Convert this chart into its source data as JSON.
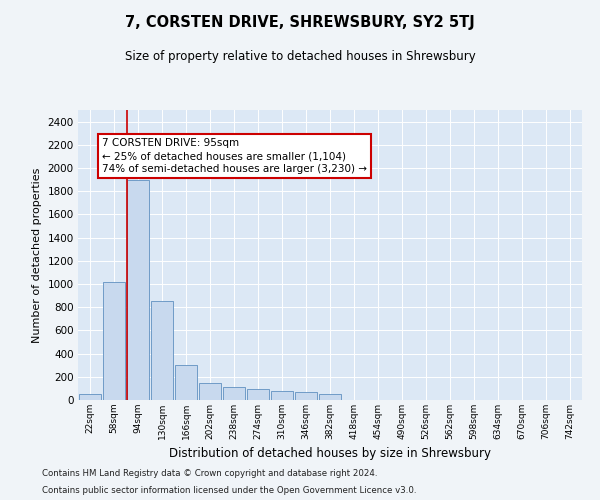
{
  "title": "7, CORSTEN DRIVE, SHREWSBURY, SY2 5TJ",
  "subtitle": "Size of property relative to detached houses in Shrewsbury",
  "xlabel": "Distribution of detached houses by size in Shrewsbury",
  "ylabel": "Number of detached properties",
  "bar_color": "#c8d9ee",
  "bar_edge_color": "#6090c0",
  "fig_bg_color": "#f0f4f8",
  "plot_bg_color": "#dce8f5",
  "grid_color": "#ffffff",
  "annotation_box_color": "#cc0000",
  "vline_color": "#cc0000",
  "vline_x_index": 2,
  "annotation_title": "7 CORSTEN DRIVE: 95sqm",
  "annotation_line1": "← 25% of detached houses are smaller (1,104)",
  "annotation_line2": "74% of semi-detached houses are larger (3,230) →",
  "categories": [
    "22sqm",
    "58sqm",
    "94sqm",
    "130sqm",
    "166sqm",
    "202sqm",
    "238sqm",
    "274sqm",
    "310sqm",
    "346sqm",
    "382sqm",
    "418sqm",
    "454sqm",
    "490sqm",
    "526sqm",
    "562sqm",
    "598sqm",
    "634sqm",
    "670sqm",
    "706sqm",
    "742sqm"
  ],
  "values": [
    50,
    1020,
    1900,
    850,
    300,
    150,
    110,
    95,
    80,
    65,
    55,
    0,
    0,
    0,
    0,
    0,
    0,
    0,
    0,
    0,
    0
  ],
  "ylim": [
    0,
    2500
  ],
  "yticks": [
    0,
    200,
    400,
    600,
    800,
    1000,
    1200,
    1400,
    1600,
    1800,
    2000,
    2200,
    2400
  ],
  "footer1": "Contains HM Land Registry data © Crown copyright and database right 2024.",
  "footer2": "Contains public sector information licensed under the Open Government Licence v3.0."
}
